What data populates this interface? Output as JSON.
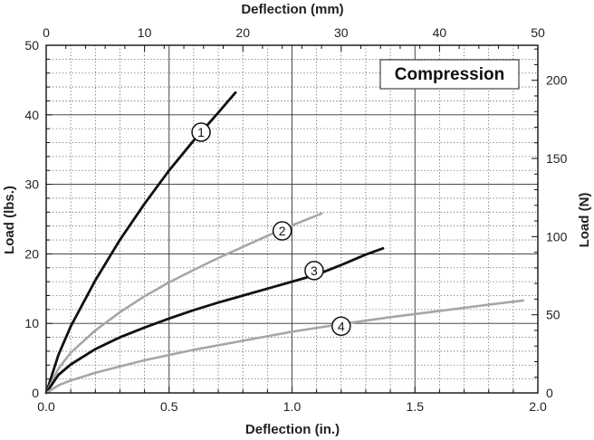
{
  "chart_data": {
    "type": "line",
    "annotation": "Compression",
    "xlabel_bottom": "Deflection (in.)",
    "xlabel_top": "Deflection (mm)",
    "ylabel_left": "Load (lbs.)",
    "ylabel_right": "Load (N)",
    "xlim": [
      0,
      2.0
    ],
    "ylim": [
      0,
      50
    ],
    "xlim_top": [
      0,
      50
    ],
    "ylim_right_ticks": [
      0,
      50,
      100,
      150,
      200
    ],
    "x_ticks_bottom": [
      "0.0",
      "0.5",
      "1.0",
      "1.5",
      "2.0"
    ],
    "x_ticks_top": [
      "0",
      "10",
      "20",
      "30",
      "40",
      "50"
    ],
    "y_ticks_left": [
      "0",
      "10",
      "20",
      "30",
      "40",
      "50"
    ],
    "y_ticks_right": [
      "0",
      "50",
      "100",
      "150",
      "200"
    ],
    "grid": true,
    "colors": {
      "dark": "#111111",
      "light": "#a6a6a6"
    },
    "series": [
      {
        "name": "1",
        "color": "dark",
        "marker_x": 0.63,
        "marker_y": 37.5,
        "x": [
          0.0,
          0.05,
          0.1,
          0.2,
          0.3,
          0.4,
          0.5,
          0.6,
          0.7,
          0.77
        ],
        "y": [
          0.0,
          5.5,
          9.6,
          16.2,
          22.0,
          27.2,
          32.0,
          36.3,
          40.3,
          43.2
        ]
      },
      {
        "name": "2",
        "color": "light",
        "marker_x": 0.96,
        "marker_y": 23.3,
        "x": [
          0.0,
          0.05,
          0.1,
          0.2,
          0.3,
          0.4,
          0.5,
          0.6,
          0.7,
          0.8,
          0.9,
          1.0,
          1.12
        ],
        "y": [
          0.0,
          3.5,
          5.8,
          9.0,
          11.6,
          13.9,
          15.9,
          17.7,
          19.4,
          21.0,
          22.6,
          24.1,
          25.8
        ]
      },
      {
        "name": "3",
        "color": "dark",
        "marker_x": 1.09,
        "marker_y": 17.6,
        "x": [
          0.0,
          0.05,
          0.1,
          0.2,
          0.3,
          0.4,
          0.5,
          0.6,
          0.7,
          0.8,
          0.9,
          1.0,
          1.1,
          1.2,
          1.3,
          1.37
        ],
        "y": [
          0.0,
          2.6,
          4.1,
          6.3,
          8.0,
          9.4,
          10.7,
          11.9,
          13.0,
          14.0,
          15.0,
          16.0,
          17.0,
          18.4,
          19.9,
          20.8
        ]
      },
      {
        "name": "4",
        "color": "light",
        "marker_x": 1.2,
        "marker_y": 9.6,
        "x": [
          0.0,
          0.05,
          0.1,
          0.2,
          0.4,
          0.6,
          0.8,
          1.0,
          1.2,
          1.4,
          1.6,
          1.8,
          1.94
        ],
        "y": [
          0.0,
          1.1,
          1.8,
          2.9,
          4.7,
          6.2,
          7.5,
          8.8,
          9.9,
          10.9,
          11.8,
          12.7,
          13.3
        ]
      }
    ]
  }
}
